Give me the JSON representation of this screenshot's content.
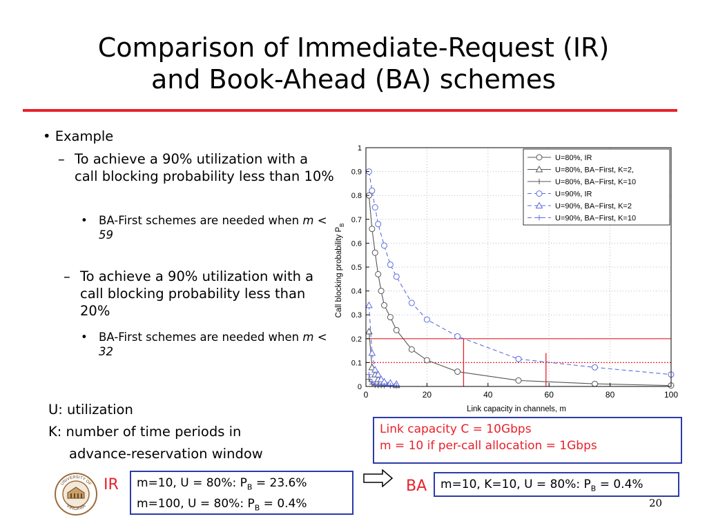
{
  "slide": {
    "title_line1": "Comparison of Immediate-Request (IR)",
    "title_line2": "and Book-Ahead (BA) schemes",
    "example": "• Example",
    "dash": "–",
    "dot": "•",
    "item1": {
      "text": "To achieve a 90% utilization with a call blocking probability less than 10%",
      "sub": "BA-First schemes are needed when",
      "sub_m": "m",
      "sub_cond": "< 59"
    },
    "item2": {
      "text": "To achieve a 90% utilization with a call blocking probability less than 20%",
      "sub": "BA-First schemes are needed when",
      "sub_m": "m",
      "sub_cond": "< 32"
    },
    "defs": {
      "u": "U: utilization",
      "k1": "K: number of time periods in",
      "k2": "advance-reservation window"
    },
    "link_box": {
      "line1": "Link capacity C = 10Gbps",
      "line2": "m = 10 if per-call allocation = 1Gbps"
    },
    "ir": {
      "label": "IR",
      "l1_pre": "m=10, U = 80%: P",
      "l1_sub": "B",
      "l1_post": " = 23.6%",
      "l2_pre": "m=100, U = 80%: P",
      "l2_sub": "B",
      "l2_post": " = 0.4%"
    },
    "ba": {
      "label": "BA",
      "l1_pre": "m=10, K=10, U = 80%: P",
      "l1_sub": "B",
      "l1_post": " = 0.4%"
    },
    "page": "20",
    "logo": {
      "text_top": "UNIVERSITY OF",
      "text_bottom": "VIRGINIA",
      "icon": "university-seal-icon"
    },
    "arrow_icon": "right-arrow-icon",
    "colors": {
      "accent_red": "#e8202a",
      "box_border": "#2b3aa8",
      "ir_series": "#555555",
      "blue_series": "#5a6ae0"
    }
  },
  "chart_data": {
    "type": "line",
    "xlabel": "Link capacity in channels, m",
    "ylabel": "Call blocking probability P",
    "ylabel_sub": "B",
    "xlim": [
      0,
      100
    ],
    "ylim": [
      0,
      1
    ],
    "xticks": [
      0,
      20,
      40,
      60,
      80,
      100
    ],
    "yticks": [
      0,
      0.1,
      0.2,
      0.3,
      0.4,
      0.5,
      0.6,
      0.7,
      0.8,
      0.9,
      1
    ],
    "grid": true,
    "legend_position": "top-right",
    "series": [
      {
        "name": "U=80%, IR",
        "color": "#555555",
        "dash": false,
        "marker": "circle",
        "x": [
          1,
          2,
          3,
          4,
          5,
          6,
          8,
          10,
          15,
          20,
          30,
          50,
          75,
          100
        ],
        "y": [
          0.8,
          0.66,
          0.56,
          0.47,
          0.4,
          0.34,
          0.29,
          0.236,
          0.155,
          0.11,
          0.062,
          0.025,
          0.011,
          0.004
        ]
      },
      {
        "name": "U=80%, BA−First, K=2,",
        "color": "#555555",
        "dash": false,
        "marker": "triangle",
        "x": [
          1,
          2,
          3,
          4,
          5,
          6,
          8,
          10
        ],
        "y": [
          0.23,
          0.08,
          0.05,
          0.03,
          0.02,
          0.015,
          0.01,
          0.005
        ]
      },
      {
        "name": "U=80%, BA−First, K=10",
        "color": "#555555",
        "dash": false,
        "marker": "plus",
        "x": [
          1,
          2,
          3,
          4,
          5,
          6,
          8,
          10
        ],
        "y": [
          0.03,
          0.01,
          0.005,
          0.004,
          0.004,
          0.004,
          0.004,
          0.004
        ]
      },
      {
        "name": "U=90%, IR",
        "color": "#5a6ae0",
        "dash": true,
        "marker": "circle",
        "x": [
          1,
          2,
          3,
          4,
          6,
          8,
          10,
          15,
          20,
          30,
          50,
          75,
          100
        ],
        "y": [
          0.9,
          0.82,
          0.75,
          0.68,
          0.59,
          0.51,
          0.46,
          0.35,
          0.28,
          0.21,
          0.115,
          0.08,
          0.05
        ]
      },
      {
        "name": "U=90%, BA−First, K=2",
        "color": "#5a6ae0",
        "dash": true,
        "marker": "triangle",
        "x": [
          1,
          2,
          3,
          4,
          5,
          6,
          8,
          10
        ],
        "y": [
          0.34,
          0.14,
          0.07,
          0.05,
          0.03,
          0.02,
          0.015,
          0.01
        ]
      },
      {
        "name": "U=90%, BA−First, K=10",
        "color": "#5a6ae0",
        "dash": true,
        "marker": "plus",
        "x": [
          1,
          2,
          3,
          4,
          6,
          8,
          10
        ],
        "y": [
          0.05,
          0.02,
          0.01,
          0.005,
          0.003,
          0.003,
          0.003
        ]
      }
    ],
    "reference_lines": [
      {
        "type": "h",
        "y": 0.2,
        "color": "#e8202a",
        "dotted": false
      },
      {
        "type": "h",
        "y": 0.1,
        "color": "#e8202a",
        "dotted": true
      },
      {
        "type": "v",
        "x": 32,
        "y_to": 0.2,
        "color": "#e8202a"
      },
      {
        "type": "v",
        "x": 59,
        "y_to": 0.14,
        "color": "#e8202a"
      }
    ]
  }
}
